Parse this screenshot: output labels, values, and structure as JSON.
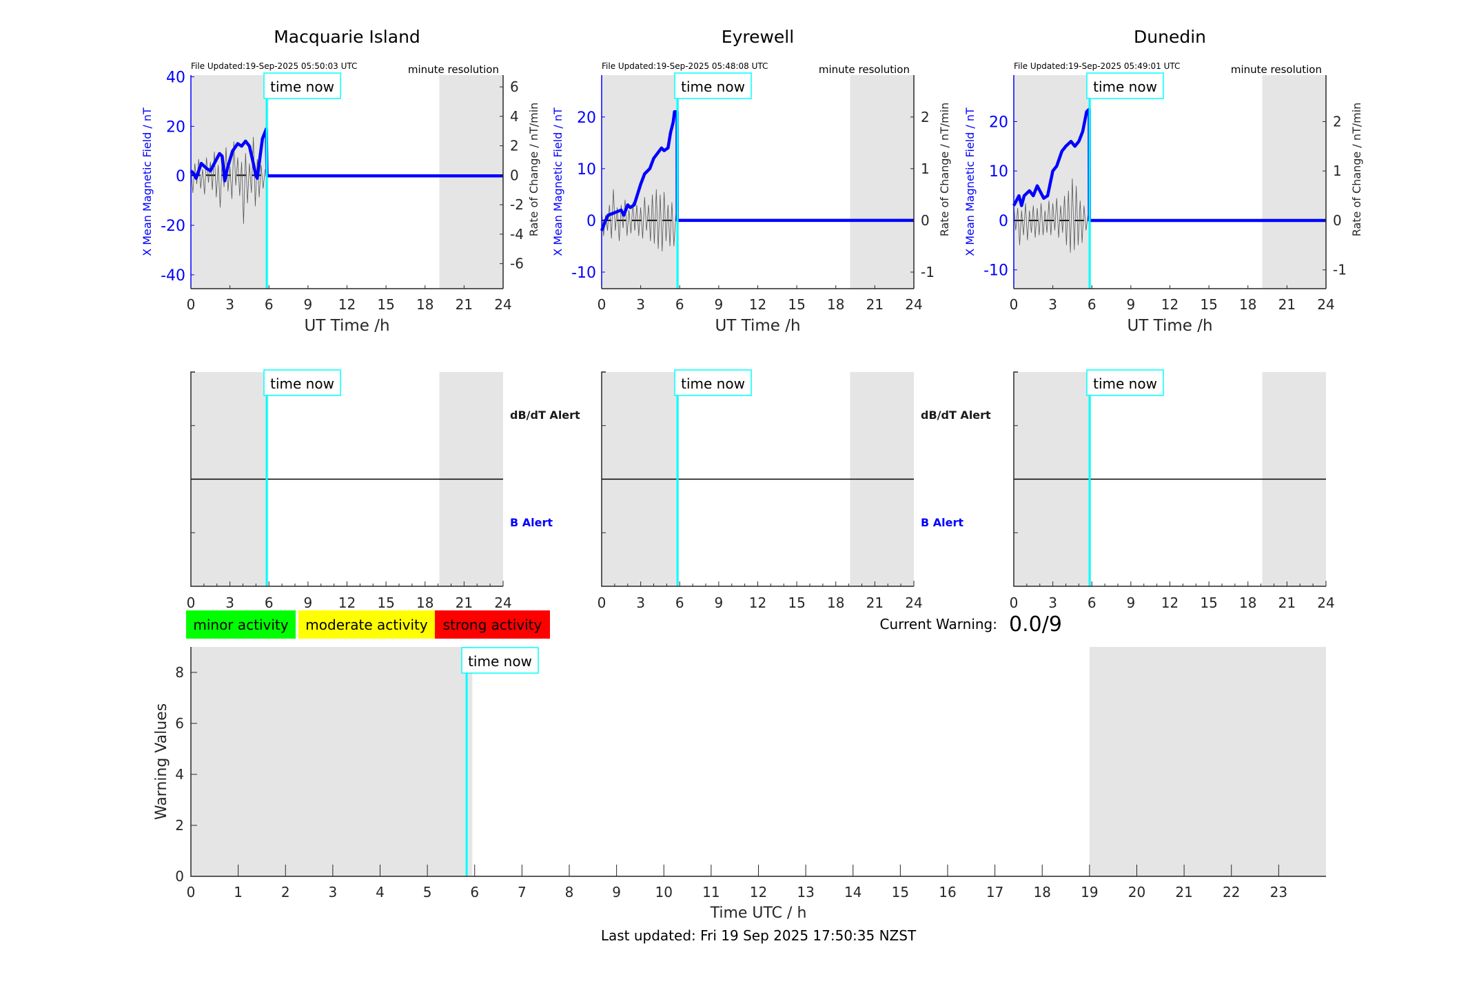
{
  "colors": {
    "field": "#0000ff",
    "rate": "#555555",
    "time_now": "#00ffff",
    "shade": "#e5e5e5",
    "minor": "#00ff00",
    "moderate": "#ffff00",
    "strong": "#ff0000"
  },
  "time_now_label": "time now",
  "chart_data": [
    {
      "type": "line",
      "title": "Macquarie Island",
      "file_updated": "File Updated:19-Sep-2025 05:50:03 UTC",
      "resolution": "minute resolution",
      "xlabel": "UT Time /h",
      "ylabel_left": "X Mean Magnetic Field / nT",
      "ylabel_right": "Rate of Change / nT/min",
      "xlim": [
        0,
        24
      ],
      "xticks": [
        0,
        3,
        6,
        9,
        12,
        15,
        18,
        21,
        24
      ],
      "ylim_left": [
        -45.6,
        40.7
      ],
      "yticks_left": [
        -40,
        -20,
        0,
        20,
        40
      ],
      "ylim_right": [
        -7.7,
        6.8
      ],
      "yticks_right": [
        -6,
        -4,
        -2,
        0,
        2,
        4,
        6
      ],
      "time_now": 5.83,
      "shaded": [
        [
          0,
          5.95
        ],
        [
          19.1,
          24
        ]
      ],
      "field_series": {
        "x": [
          0,
          0.2,
          0.4,
          0.6,
          0.8,
          1.2,
          1.5,
          1.8,
          2.2,
          2.4,
          2.6,
          2.8,
          3.2,
          3.6,
          3.9,
          4.2,
          4.5,
          4.8,
          5.0,
          5.1,
          5.3,
          5.5,
          5.8,
          5.85,
          24
        ],
        "y": [
          2,
          1,
          -1,
          2,
          5,
          3,
          2,
          5,
          9,
          8,
          -2,
          3,
          10,
          13,
          12,
          14,
          12,
          5,
          0,
          -1,
          7,
          15,
          19,
          0,
          0
        ]
      },
      "rate_series": {
        "x0": 0,
        "dx": 0.15,
        "y": [
          0.5,
          -1.2,
          0.8,
          -0.6,
          1.1,
          -0.9,
          0.4,
          -1.3,
          1.2,
          -0.5,
          0.9,
          -1.0,
          1.6,
          -1.5,
          0.7,
          -2.2,
          1.0,
          -0.8,
          1.9,
          -1.1,
          0.6,
          -1.6,
          2.3,
          -0.7,
          1.2,
          -1.4,
          0.9,
          -3.3,
          1.5,
          -1.9,
          0.8,
          -1.2,
          2.6,
          -2.1,
          1.1,
          -1.5,
          0.7,
          -0.9,
          0.4
        ]
      }
    },
    {
      "type": "line",
      "title": "Eyrewell",
      "file_updated": "File Updated:19-Sep-2025 05:48:08 UTC",
      "resolution": "minute resolution",
      "xlabel": "UT Time /h",
      "ylabel_left": "X Mean Magnetic Field / nT",
      "ylabel_right": "Rate of Change / nT/min",
      "xlim": [
        0,
        24
      ],
      "xticks": [
        0,
        3,
        6,
        9,
        12,
        15,
        18,
        21,
        24
      ],
      "ylim_left": [
        -13.2,
        28.1
      ],
      "yticks_left": [
        -10,
        0,
        10,
        20
      ],
      "ylim_right": [
        -1.32,
        2.81
      ],
      "yticks_right": [
        -1,
        0,
        1,
        2
      ],
      "time_now": 5.83,
      "shaded": [
        [
          0,
          5.95
        ],
        [
          19.1,
          24
        ]
      ],
      "field_series": {
        "x": [
          0,
          0.3,
          0.5,
          1,
          1.5,
          1.7,
          2,
          2.2,
          2.5,
          3,
          3.3,
          3.7,
          4,
          4.3,
          4.6,
          4.8,
          5.1,
          5.3,
          5.5,
          5.6,
          5.8,
          5.81,
          24
        ],
        "y": [
          -2,
          0,
          1,
          1.5,
          2,
          1,
          3,
          2.5,
          3,
          7,
          9,
          10,
          12,
          13,
          14,
          13.5,
          14,
          17,
          19,
          21,
          21,
          0,
          0
        ]
      },
      "rate_series": {
        "x0": 0,
        "dx": 0.15,
        "y": [
          0.2,
          -0.3,
          0.1,
          -0.2,
          0.3,
          -0.35,
          0.6,
          -0.2,
          0.25,
          -0.4,
          0.3,
          -0.15,
          0.4,
          -0.3,
          0.2,
          -0.25,
          0.35,
          -0.2,
          0.3,
          -0.3,
          0.25,
          -0.35,
          0.45,
          -0.2,
          0.3,
          -0.4,
          0.5,
          -0.45,
          0.6,
          -0.55,
          0.5,
          -0.6,
          0.55,
          -0.4,
          0.3,
          -0.5,
          0.35,
          -0.5,
          0.1
        ]
      }
    },
    {
      "type": "line",
      "title": "Dunedin",
      "file_updated": "File Updated:19-Sep-2025 05:49:01 UTC",
      "resolution": "minute resolution",
      "xlabel": "UT Time /h",
      "ylabel_left": "X Mean Magnetic Field / nT",
      "ylabel_right": "Rate of Change / nT/min",
      "xlim": [
        0,
        24
      ],
      "xticks": [
        0,
        3,
        6,
        9,
        12,
        15,
        18,
        21,
        24
      ],
      "ylim_left": [
        -13.8,
        29.4
      ],
      "yticks_left": [
        -10,
        0,
        10,
        20
      ],
      "ylim_right": [
        -1.38,
        2.94
      ],
      "yticks_right": [
        -1,
        0,
        1,
        2
      ],
      "time_now": 5.83,
      "shaded": [
        [
          0,
          5.95
        ],
        [
          19.1,
          24
        ]
      ],
      "field_series": {
        "x": [
          0,
          0.2,
          0.4,
          0.6,
          0.8,
          1.2,
          1.5,
          1.8,
          2,
          2.3,
          2.6,
          3,
          3.3,
          3.7,
          4,
          4.4,
          4.7,
          5,
          5.3,
          5.6,
          5.8,
          5.81,
          24
        ],
        "y": [
          3,
          4,
          5,
          3,
          5,
          6,
          5,
          7,
          6,
          4.5,
          5,
          10,
          11,
          14,
          15,
          16,
          15,
          16,
          18,
          22,
          22.5,
          0,
          0
        ]
      },
      "rate_series": {
        "x0": 0,
        "dx": 0.15,
        "y": [
          0.3,
          -0.2,
          0.25,
          -0.5,
          0.2,
          -0.3,
          0.35,
          -0.4,
          0.2,
          -0.25,
          0.3,
          -0.35,
          0.25,
          -0.3,
          0.35,
          -0.3,
          0.2,
          -0.25,
          0.4,
          -0.3,
          0.35,
          -0.2,
          0.45,
          -0.35,
          0.3,
          -0.25,
          0.5,
          -0.5,
          0.6,
          -0.65,
          0.85,
          -0.6,
          0.7,
          -0.5,
          0.4,
          -0.45,
          0.3,
          -0.2,
          0.1
        ]
      }
    },
    {
      "type": "line",
      "title": "",
      "xlabel": "Time UTC / h",
      "ylabel": "Warning Values",
      "xlim": [
        0,
        24
      ],
      "xticks": [
        0,
        1,
        2,
        3,
        4,
        5,
        6,
        7,
        8,
        9,
        10,
        11,
        12,
        13,
        14,
        15,
        16,
        17,
        18,
        19,
        20,
        21,
        22,
        23
      ],
      "ylim": [
        0,
        9
      ],
      "yticks": [
        0,
        2,
        4,
        6,
        8
      ],
      "time_now": 5.83,
      "shaded": [
        [
          0,
          5.95
        ],
        [
          19,
          24
        ]
      ],
      "values": []
    }
  ],
  "alerts": {
    "dbdt_label": "dB/dT Alert",
    "b_label": "B Alert",
    "xticks": [
      0,
      3,
      6,
      9,
      12,
      15,
      18,
      21,
      24
    ]
  },
  "legend": {
    "minor": "minor activity",
    "moderate": "moderate activity",
    "strong": "strong activity"
  },
  "current_warning": {
    "label": "Current Warning:",
    "value": "0.0/9"
  },
  "footer": {
    "last_updated": "Last updated: Fri 19 Sep 2025 17:50:35 NZST"
  }
}
